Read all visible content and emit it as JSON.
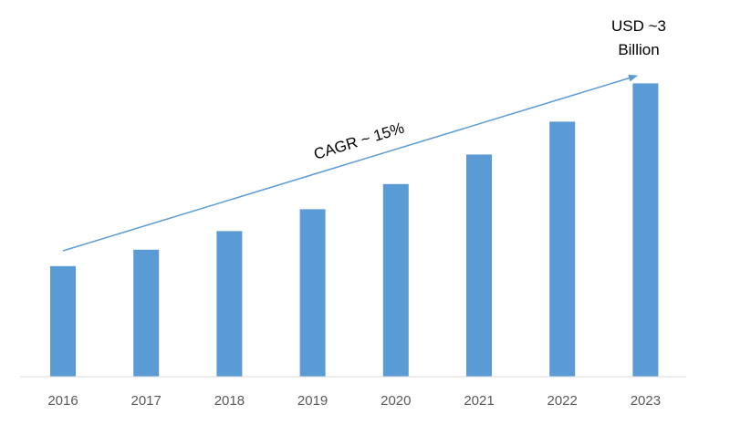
{
  "chart_data": {
    "type": "bar",
    "categories": [
      "2016",
      "2017",
      "2018",
      "2019",
      "2020",
      "2021",
      "2022",
      "2023"
    ],
    "values": [
      1.01,
      1.16,
      1.33,
      1.53,
      1.76,
      2.03,
      2.33,
      2.68
    ],
    "ylim": [
      0,
      3.0
    ],
    "title": "",
    "xlabel": "",
    "ylabel": "",
    "grid": false,
    "legend": "none",
    "bar_color": "#5B9BD5",
    "axis_color": "#D9D9D9",
    "tick_label_color": "#595959",
    "annotations": {
      "trend_label": "CAGR ~ 15%",
      "value_label_line1": "USD ~3",
      "value_label_line2": "Billion",
      "trend_arrow_color": "#5B9BD5"
    }
  }
}
